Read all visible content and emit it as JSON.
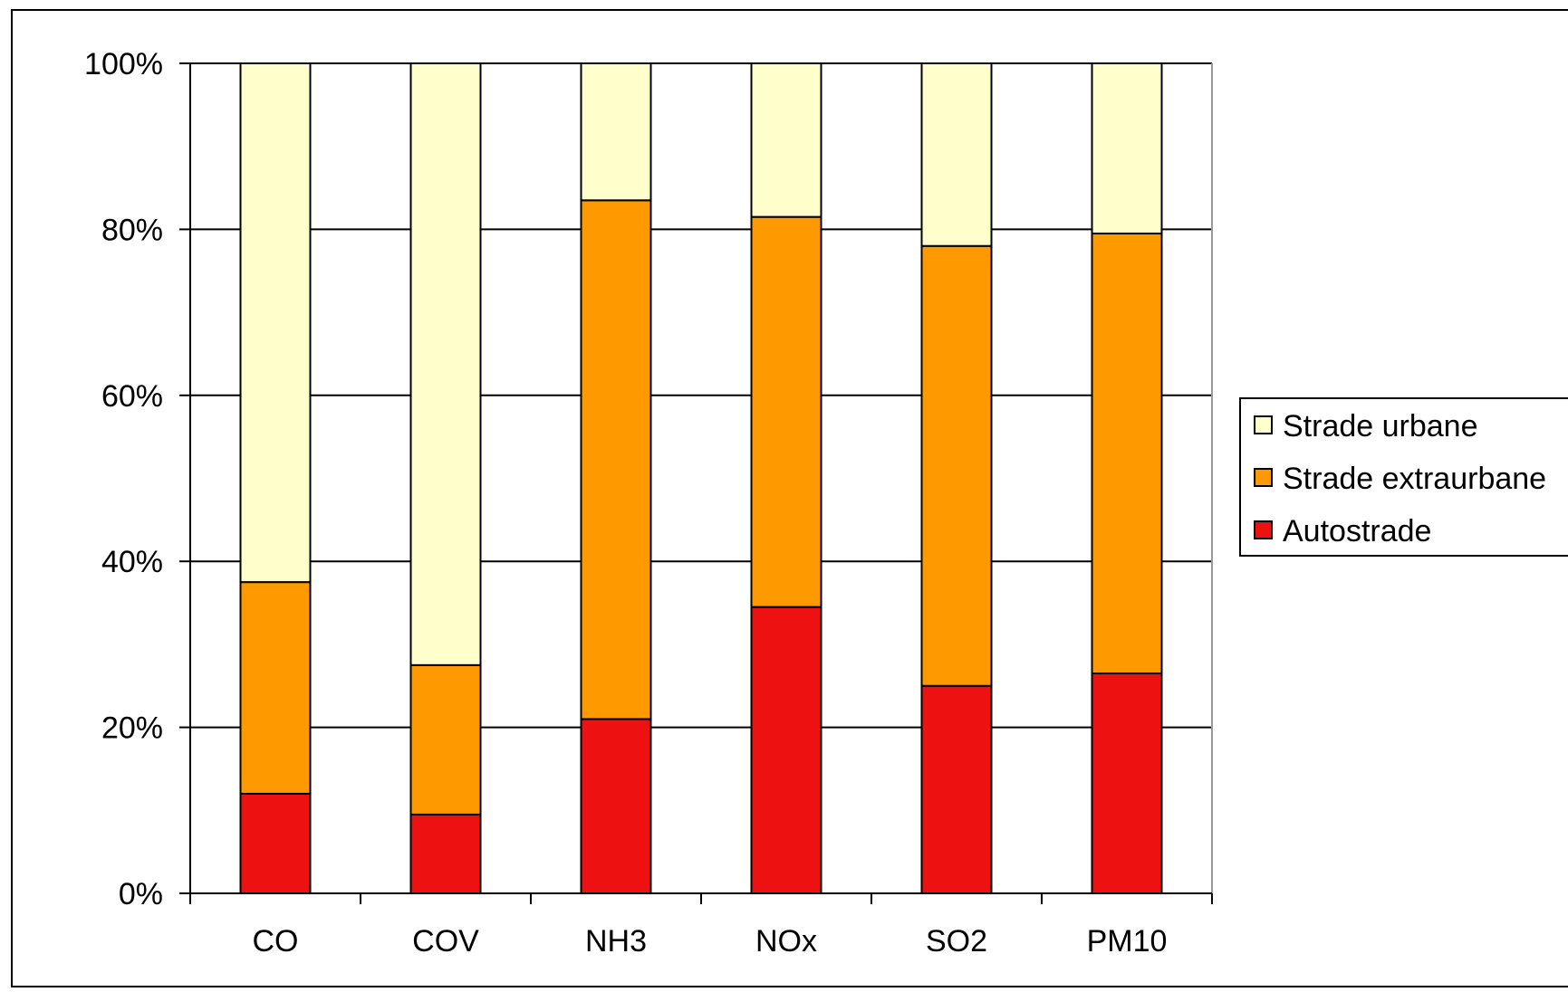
{
  "chart_data": {
    "type": "bar",
    "stacked": true,
    "percent_stacked": true,
    "categories": [
      "CO",
      "COV",
      "NH3",
      "NOx",
      "SO2",
      "PM10"
    ],
    "series": [
      {
        "name": "Autostrade",
        "color": "#ee1111",
        "values": [
          12,
          9.5,
          21,
          34.5,
          25,
          26.5
        ]
      },
      {
        "name": "Strade extraurbane",
        "color": "#ff9900",
        "values": [
          25.5,
          18,
          62.5,
          47,
          53,
          53
        ]
      },
      {
        "name": "Strade urbane",
        "color": "#ffffcc",
        "values": [
          62.5,
          72.5,
          16.5,
          18.5,
          22,
          20.5
        ]
      }
    ],
    "legend_order": [
      "Strade urbane",
      "Strade extraurbane",
      "Autostrade"
    ],
    "y_ticks": [
      "0%",
      "20%",
      "40%",
      "60%",
      "80%",
      "100%"
    ],
    "ylim": [
      0,
      100
    ],
    "grid": true,
    "legend_position": "right"
  }
}
